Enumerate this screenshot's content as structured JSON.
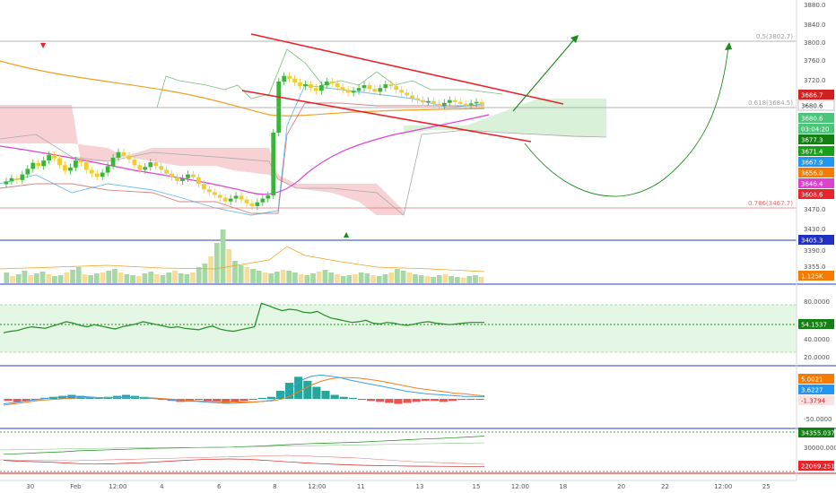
{
  "colors": {
    "candle_up": "#3bb43b",
    "candle_down": "#f2cb2c",
    "ema_orange": "#f0a020",
    "ma_pink": "#e040d0",
    "trend_red": "#e8232a",
    "arrow_green": "#1a8c1a",
    "cloud_red": "#f6c9cc",
    "cloud_green": "#cfeecf",
    "rsi_line": "#1f8f1f",
    "rsi_band": "#e4f6e4",
    "macd_line": "#3aa0e8",
    "signal_line": "#f08020",
    "hist_up": "#26a69a",
    "hist_down": "#ef5350",
    "sep_blue": "#2040c0",
    "sep_red": "#d02020"
  },
  "chart_data": [
    {
      "type": "line",
      "name": "price",
      "price_axis": {
        "ticks": [
          "3880.0",
          "3840.0",
          "3800.0",
          "3760.0",
          "3720.0",
          "3470.0",
          "3430.0"
        ],
        "ylim": [
          3400,
          3890
        ]
      },
      "fib_levels": [
        {
          "label": "0.5(3802.7)",
          "value": 3802.7
        },
        {
          "label": "0.618(3684.5)",
          "value": 3684.5
        },
        {
          "label": "0.786(3467.7)",
          "value": 3467.7
        }
      ],
      "price_tags": [
        {
          "text": "3686.7",
          "color": "#d02020",
          "text_color": "#ffffff"
        },
        {
          "text": "3680.6",
          "color": "#ffffff",
          "text_color": "#333333",
          "border": "#999999"
        },
        {
          "text": "3680.6",
          "color": "#4cc47a",
          "text_color": "#ffffff"
        },
        {
          "text": "03:04:20",
          "color": "#4cc47a",
          "text_color": "#ffffff"
        },
        {
          "text": "3677.3",
          "color": "#128012",
          "text_color": "#ffffff"
        },
        {
          "text": "3671.4",
          "color": "#18a018",
          "text_color": "#ffffff"
        },
        {
          "text": "3667.9",
          "color": "#2196f3",
          "text_color": "#ffffff"
        },
        {
          "text": "3656.0",
          "color": "#f57c00",
          "text_color": "#ffffff"
        },
        {
          "text": "3646.4",
          "color": "#e040d0",
          "text_color": "#ffffff"
        },
        {
          "text": "3608.6",
          "color": "#e8232a",
          "text_color": "#ffffff"
        },
        {
          "text": "3405.3",
          "color": "#2030c0",
          "text_color": "#ffffff"
        }
      ],
      "closes": [
        3515,
        3522,
        3518,
        3530,
        3542,
        3555,
        3548,
        3560,
        3572,
        3565,
        3550,
        3538,
        3545,
        3560,
        3556,
        3540,
        3532,
        3525,
        3534,
        3548,
        3566,
        3578,
        3570,
        3562,
        3550,
        3540,
        3546,
        3556,
        3548,
        3540,
        3532,
        3524,
        3516,
        3522,
        3530,
        3524,
        3510,
        3498,
        3492,
        3486,
        3480,
        3472,
        3478,
        3484,
        3476,
        3468,
        3462,
        3470,
        3478,
        3485,
        3620,
        3730,
        3742,
        3736,
        3728,
        3720,
        3724,
        3716,
        3710,
        3722,
        3730,
        3726,
        3718,
        3712,
        3706,
        3710,
        3716,
        3722,
        3714,
        3708,
        3716,
        3724,
        3720,
        3712,
        3706,
        3700,
        3694,
        3690,
        3685,
        3688,
        3682,
        3678,
        3684,
        3690,
        3686,
        3682,
        3680,
        3683,
        3686,
        3681
      ]
    },
    {
      "type": "bar",
      "name": "volume",
      "price_tag": {
        "text": "1.125K",
        "color": "#f57c00",
        "text_color": "#ffffff"
      },
      "axis_ticks": [
        "3390.0",
        "3355.0"
      ],
      "values": [
        12,
        8,
        10,
        14,
        9,
        11,
        13,
        10,
        8,
        9,
        12,
        15,
        18,
        10,
        9,
        11,
        12,
        14,
        16,
        12,
        10,
        9,
        8,
        11,
        13,
        10,
        9,
        12,
        14,
        11,
        10,
        12,
        18,
        22,
        30,
        45,
        60,
        38,
        25,
        20,
        18,
        16,
        14,
        12,
        11,
        13,
        15,
        14,
        12,
        10,
        9,
        11,
        13,
        15,
        12,
        10,
        8,
        9,
        10,
        12,
        11,
        9,
        8,
        10,
        12,
        16,
        14,
        12,
        10,
        9,
        8,
        7,
        9,
        10,
        8,
        7,
        6,
        8,
        9,
        7
      ]
    },
    {
      "type": "line",
      "name": "rsi",
      "axis_ticks": [
        "80.0000",
        "40.0000",
        "20.0000"
      ],
      "price_tag": {
        "text": "54.1537",
        "color": "#128012",
        "text_color": "#ffffff"
      },
      "band": [
        30,
        70
      ],
      "mid": 50,
      "values": [
        40,
        42,
        43,
        46,
        48,
        47,
        46,
        49,
        52,
        55,
        53,
        50,
        48,
        51,
        49,
        47,
        45,
        48,
        50,
        52,
        55,
        53,
        51,
        49,
        47,
        48,
        46,
        45,
        44,
        47,
        49,
        45,
        43,
        42,
        44,
        46,
        48,
        80,
        77,
        73,
        70,
        72,
        71,
        68,
        67,
        69,
        64,
        60,
        58,
        56,
        54,
        55,
        57,
        53,
        52,
        54,
        53,
        51,
        50,
        52,
        54,
        55,
        53,
        52,
        51,
        52,
        53,
        54,
        54,
        54
      ]
    },
    {
      "type": "bar",
      "name": "macd",
      "axis_ticks": [
        "-50.0000"
      ],
      "price_tags": [
        {
          "text": "5.0021",
          "color": "#f57c00",
          "text_color": "#ffffff"
        },
        {
          "text": "3.6227",
          "color": "#2196f3",
          "text_color": "#ffffff"
        },
        {
          "text": "-1.3794",
          "color": "#fde0e0",
          "text_color": "#d02020"
        }
      ],
      "histogram": [
        -2,
        -3,
        -2,
        -1,
        1,
        2,
        3,
        4,
        3,
        2,
        1,
        2,
        3,
        4,
        3,
        2,
        1,
        -1,
        -2,
        -3,
        -2,
        -1,
        -2,
        -3,
        -4,
        -3,
        -2,
        -1,
        1,
        2,
        8,
        16,
        22,
        18,
        12,
        8,
        4,
        2,
        1,
        -1,
        -2,
        -3,
        -4,
        -5,
        -4,
        -3,
        -2,
        -2,
        -3,
        -2,
        -1,
        -1,
        -1
      ],
      "macd": [
        -8,
        -6,
        -4,
        -2,
        0,
        2,
        3,
        4,
        4,
        3,
        2,
        2,
        3,
        3,
        2,
        1,
        0,
        -1,
        -3,
        -4,
        -4,
        -5,
        -6,
        -7,
        -7,
        -6,
        -5,
        -4,
        -2,
        6,
        18,
        30,
        36,
        38,
        36,
        34,
        30,
        27,
        24,
        21,
        18,
        15,
        12,
        10,
        8,
        7,
        6,
        5,
        4,
        4,
        3.6
      ],
      "signal": [
        -10,
        -8,
        -6,
        -4,
        -2,
        -1,
        0,
        1,
        2,
        2,
        2,
        2,
        2,
        2,
        2,
        2,
        1,
        0,
        -1,
        -2,
        -3,
        -4,
        -4,
        -5,
        -5,
        -5,
        -5,
        -4,
        -3,
        0,
        6,
        14,
        22,
        28,
        32,
        34,
        34,
        33,
        31,
        29,
        26,
        23,
        20,
        17,
        15,
        13,
        11,
        9,
        8,
        6,
        5
      ]
    },
    {
      "type": "line",
      "name": "volume_oscillator",
      "axis_ticks": [
        "30000.0000"
      ],
      "price_tags": [
        {
          "text": "34355.0376",
          "color": "#128012",
          "text_color": "#ffffff"
        },
        {
          "text": "22069.2516",
          "color": "#e8232a",
          "text_color": "#ffffff"
        }
      ],
      "green_values": [
        27000,
        27200,
        27500,
        27800,
        28000,
        28400,
        28600,
        28800,
        29000,
        29200,
        29400,
        29500,
        29600,
        29700,
        29800,
        29900,
        30100,
        30300,
        30600,
        30900,
        31200,
        31400,
        31600,
        31800,
        32000,
        32300,
        32600,
        32900,
        33200,
        33400,
        33700,
        34000,
        34355
      ],
      "red_values": [
        24500,
        24200,
        24000,
        23800,
        23500,
        23200,
        23000,
        23100,
        23300,
        23500,
        23800,
        24200,
        24500,
        24800,
        25000,
        25100,
        25000,
        24700,
        24300,
        23900,
        23500,
        23200,
        22900,
        22700,
        22500,
        22400,
        22300,
        22200,
        22150,
        22100,
        22080,
        22070,
        22069
      ]
    }
  ],
  "x_axis_labels": [
    {
      "t": 0.038,
      "label": "30"
    },
    {
      "t": 0.095,
      "label": "Feb"
    },
    {
      "t": 0.148,
      "label": "12:00"
    },
    {
      "t": 0.203,
      "label": "4"
    },
    {
      "t": 0.275,
      "label": "6"
    },
    {
      "t": 0.345,
      "label": "8"
    },
    {
      "t": 0.398,
      "label": "12:00"
    },
    {
      "t": 0.453,
      "label": "11"
    },
    {
      "t": 0.527,
      "label": "13"
    },
    {
      "t": 0.598,
      "label": "15"
    },
    {
      "t": 0.653,
      "label": "12:00"
    },
    {
      "t": 0.707,
      "label": "18"
    },
    {
      "t": 0.78,
      "label": "20"
    },
    {
      "t": 0.835,
      "label": "22"
    },
    {
      "t": 0.908,
      "label": "12:00"
    },
    {
      "t": 0.962,
      "label": "25"
    }
  ]
}
